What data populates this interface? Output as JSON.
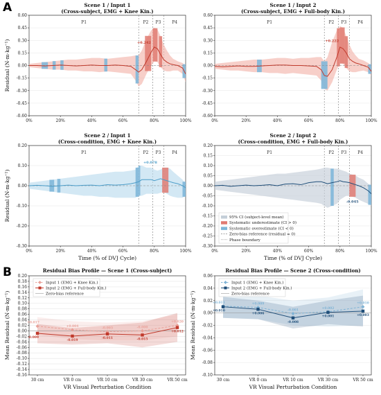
{
  "panel_letters": [
    "A",
    "B"
  ],
  "chart_data": [
    {
      "id": "s1i1",
      "type": "line",
      "title_line1": "Scene 1 / Input 1",
      "title_line2": "(Cross-subject, EMG + Knee Kin.)",
      "xlabel": "",
      "ylabel": "Residual  (N·m·kg⁻¹)",
      "xlim": [
        0,
        100
      ],
      "ylim": [
        -0.6,
        0.6
      ],
      "xticks": [
        0,
        20,
        40,
        60,
        80,
        100
      ],
      "xtick_labels": [
        "0%",
        "20%",
        "40%",
        "60%",
        "80%",
        "100%"
      ],
      "yticks": [
        -0.6,
        -0.45,
        -0.3,
        -0.15,
        0,
        0.15,
        0.3,
        0.45,
        0.6
      ],
      "ytick_labels": [
        "-0.60",
        "-0.45",
        "-0.30",
        "-0.15",
        "0.00",
        "0.15",
        "0.30",
        "0.45",
        "0.60"
      ],
      "phase_boundaries": [
        70,
        79,
        86
      ],
      "phases": [
        {
          "label": "P1",
          "x": 35
        },
        {
          "label": "P2",
          "x": 74.5
        },
        {
          "label": "P3",
          "x": 82.5
        },
        {
          "label": "P4",
          "x": 93
        }
      ],
      "color": "#c0392b",
      "band_color": "#f3b6ac",
      "series_x": [
        0,
        5,
        10,
        15,
        20,
        25,
        30,
        35,
        40,
        45,
        50,
        55,
        60,
        65,
        68,
        70,
        72,
        75,
        78,
        80,
        82,
        84,
        86,
        88,
        90,
        92,
        95,
        98,
        100
      ],
      "mean": [
        0.0,
        0.0,
        -0.005,
        0.0,
        0.005,
        0.0,
        -0.005,
        0.0,
        0.005,
        0.0,
        0.0,
        0.005,
        0.0,
        -0.01,
        -0.05,
        -0.08,
        -0.05,
        0.05,
        0.16,
        0.22,
        0.2,
        0.13,
        0.07,
        0.04,
        0.02,
        0.01,
        0.0,
        -0.03,
        -0.1
      ],
      "upper": [
        0.02,
        0.03,
        0.04,
        0.05,
        0.06,
        0.07,
        0.07,
        0.08,
        0.09,
        0.09,
        0.08,
        0.09,
        0.1,
        0.11,
        0.12,
        0.12,
        0.18,
        0.32,
        0.42,
        0.45,
        0.43,
        0.35,
        0.25,
        0.18,
        0.12,
        0.08,
        0.05,
        0.03,
        0.0
      ],
      "lower": [
        -0.02,
        -0.03,
        -0.04,
        -0.05,
        -0.05,
        -0.06,
        -0.06,
        -0.07,
        -0.07,
        -0.08,
        -0.07,
        -0.08,
        -0.09,
        -0.1,
        -0.18,
        -0.25,
        -0.22,
        -0.1,
        0.0,
        0.05,
        0.04,
        -0.02,
        -0.06,
        -0.07,
        -0.07,
        -0.06,
        -0.06,
        -0.1,
        -0.2
      ],
      "under_bars": [
        [
          74,
          78
        ],
        [
          79,
          82
        ],
        [
          83,
          85
        ]
      ],
      "over_bars": [
        [
          8,
          12
        ],
        [
          15,
          17
        ],
        [
          20,
          22
        ],
        [
          48,
          50
        ],
        [
          68,
          70
        ],
        [
          98,
          100
        ]
      ],
      "annotation": {
        "text": "+0.242",
        "x": 69,
        "y": 0.26
      }
    },
    {
      "id": "s1i2",
      "type": "line",
      "title_line1": "Scene 1 / Input 2",
      "title_line2": "(Cross-subject, EMG + Full-body Kin.)",
      "xlabel": "",
      "ylabel": "",
      "xlim": [
        0,
        100
      ],
      "ylim": [
        -0.6,
        0.6
      ],
      "xticks": [
        0,
        20,
        40,
        60,
        80,
        100
      ],
      "xtick_labels": [
        "0%",
        "20%",
        "40%",
        "60%",
        "80%",
        "100%"
      ],
      "yticks": [
        -0.6,
        -0.45,
        -0.3,
        -0.15,
        0,
        0.15,
        0.3,
        0.45,
        0.6
      ],
      "ytick_labels": [
        "-0.60",
        "-0.45",
        "-0.30",
        "-0.15",
        "0.00",
        "0.15",
        "0.30",
        "0.45",
        "0.60"
      ],
      "phase_boundaries": [
        70,
        79,
        86
      ],
      "phases": [
        {
          "label": "P1",
          "x": 35
        },
        {
          "label": "P2",
          "x": 74.5
        },
        {
          "label": "P3",
          "x": 82.5
        },
        {
          "label": "P4",
          "x": 93
        }
      ],
      "color": "#c0392b",
      "band_color": "#f3b6ac",
      "series_x": [
        0,
        5,
        10,
        15,
        20,
        25,
        30,
        35,
        40,
        45,
        50,
        55,
        60,
        65,
        68,
        70,
        72,
        75,
        78,
        80,
        82,
        84,
        86,
        88,
        90,
        92,
        95,
        98,
        100
      ],
      "mean": [
        -0.01,
        -0.015,
        -0.01,
        -0.005,
        -0.01,
        -0.01,
        -0.005,
        0.0,
        0.005,
        0.005,
        0.0,
        0.0,
        -0.005,
        -0.01,
        -0.05,
        -0.12,
        -0.13,
        -0.05,
        0.1,
        0.22,
        0.2,
        0.15,
        0.08,
        0.05,
        0.03,
        0.02,
        0.0,
        -0.02,
        -0.07
      ],
      "upper": [
        0.02,
        0.03,
        0.04,
        0.05,
        0.06,
        0.07,
        0.07,
        0.08,
        0.09,
        0.09,
        0.08,
        0.09,
        0.09,
        0.1,
        0.1,
        0.05,
        0.1,
        0.28,
        0.42,
        0.47,
        0.45,
        0.35,
        0.25,
        0.17,
        0.12,
        0.08,
        0.06,
        0.03,
        0.0
      ],
      "lower": [
        -0.04,
        -0.05,
        -0.06,
        -0.06,
        -0.07,
        -0.08,
        -0.08,
        -0.09,
        -0.09,
        -0.1,
        -0.09,
        -0.1,
        -0.11,
        -0.12,
        -0.18,
        -0.28,
        -0.3,
        -0.2,
        -0.05,
        0.03,
        0.02,
        -0.03,
        -0.07,
        -0.08,
        -0.08,
        -0.07,
        -0.06,
        -0.08,
        -0.12
      ],
      "under_bars": [
        [
          78,
          80
        ],
        [
          80,
          83
        ],
        [
          83,
          85
        ]
      ],
      "over_bars": [
        [
          27,
          30
        ],
        [
          68,
          72
        ],
        [
          98,
          100
        ]
      ],
      "annotation": {
        "text": "+0.222",
        "x": 70.5,
        "y": 0.28
      }
    },
    {
      "id": "s2i1",
      "type": "line",
      "title_line1": "Scene 2 / Input 1",
      "title_line2": "(Cross-condition, EMG + Knee Kin.)",
      "xlabel": "Time (% of DVJ Cycle)",
      "ylabel": "Residual  (N·m·kg⁻¹)",
      "xlim": [
        0,
        100
      ],
      "ylim": [
        -0.3,
        0.2
      ],
      "xticks": [
        0,
        20,
        40,
        60,
        80,
        100
      ],
      "xtick_labels": [
        "0%",
        "20%",
        "40%",
        "60%",
        "80%",
        "100%"
      ],
      "yticks": [
        -0.3,
        -0.2,
        -0.1,
        0,
        0.1,
        0.2
      ],
      "ytick_labels": [
        "-0.30",
        "-0.20",
        "-0.10",
        "0.00",
        "0.10",
        "0.20"
      ],
      "phase_boundaries": [
        70,
        79,
        86
      ],
      "phases": [
        {
          "label": "P1",
          "x": 35
        },
        {
          "label": "P2",
          "x": 74.5
        },
        {
          "label": "P3",
          "x": 82.5
        },
        {
          "label": "P4",
          "x": 93
        }
      ],
      "color": "#4a9cc8",
      "band_color": "#bcdcee",
      "series_x": [
        0,
        5,
        10,
        15,
        20,
        25,
        30,
        35,
        40,
        45,
        50,
        55,
        60,
        65,
        68,
        70,
        72,
        75,
        78,
        80,
        82,
        84,
        86,
        88,
        90,
        92,
        95,
        98,
        100
      ],
      "mean": [
        0.0,
        0.002,
        0.0,
        -0.003,
        0.0,
        0.003,
        0.0,
        0.002,
        0.003,
        0.0,
        0.005,
        0.003,
        0.005,
        0.01,
        0.015,
        0.02,
        0.03,
        0.03,
        0.03,
        0.025,
        0.03,
        0.035,
        0.03,
        0.025,
        0.02,
        0.015,
        0.01,
        0.0,
        -0.01
      ],
      "upper": [
        0.015,
        0.02,
        0.025,
        0.03,
        0.035,
        0.04,
        0.045,
        0.05,
        0.055,
        0.06,
        0.065,
        0.07,
        0.07,
        0.075,
        0.08,
        0.1,
        0.1,
        0.09,
        0.09,
        0.08,
        0.075,
        0.08,
        0.09,
        0.09,
        0.085,
        0.07,
        0.05,
        0.03,
        0.01
      ],
      "lower": [
        -0.015,
        -0.02,
        -0.025,
        -0.03,
        -0.035,
        -0.04,
        -0.045,
        -0.05,
        -0.05,
        -0.055,
        -0.055,
        -0.06,
        -0.06,
        -0.06,
        -0.06,
        -0.05,
        -0.05,
        -0.04,
        -0.04,
        -0.04,
        -0.04,
        -0.035,
        -0.03,
        -0.04,
        -0.05,
        -0.055,
        -0.06,
        -0.06,
        -0.05
      ],
      "under_bars": [
        [
          85,
          89
        ]
      ],
      "over_bars": [
        [
          13,
          16
        ],
        [
          18,
          20
        ],
        [
          68,
          70
        ],
        [
          70,
          71
        ],
        [
          98,
          100
        ]
      ],
      "annotation": {
        "text": "+0.078",
        "x": 73,
        "y": 0.11
      }
    },
    {
      "id": "s2i2",
      "type": "line",
      "title_line1": "Scene 2 / Input 2",
      "title_line2": "(Cross-condition, EMG + Full-body Kin.)",
      "xlabel": "Time (% of DVJ Cycle)",
      "ylabel": "",
      "xlim": [
        0,
        100
      ],
      "ylim": [
        -0.3,
        0.2
      ],
      "xticks": [
        0,
        20,
        40,
        60,
        80,
        100
      ],
      "xtick_labels": [
        "0%",
        "20%",
        "40%",
        "60%",
        "80%",
        "100%"
      ],
      "yticks": [
        -0.3,
        -0.25,
        -0.2,
        -0.15,
        -0.1,
        -0.05,
        0,
        0.05,
        0.1,
        0.15,
        0.2
      ],
      "ytick_labels": [
        "-0.30",
        "-0.25",
        "-0.20",
        "-0.15",
        "-0.10",
        "-0.05",
        "0.00",
        "0.05",
        "0.10",
        "0.15",
        "0.20"
      ],
      "phase_boundaries": [
        70,
        79,
        86
      ],
      "phases": [
        {
          "label": "P1",
          "x": 35
        },
        {
          "label": "P2",
          "x": 74.5
        },
        {
          "label": "P3",
          "x": 82.5
        },
        {
          "label": "P4",
          "x": 93
        }
      ],
      "color": "#1f4e79",
      "band_color": "#c4ced8",
      "series_x": [
        0,
        5,
        10,
        15,
        20,
        25,
        30,
        35,
        40,
        45,
        50,
        55,
        60,
        65,
        68,
        70,
        72,
        75,
        78,
        80,
        82,
        84,
        86,
        88,
        90,
        92,
        95,
        98,
        100
      ],
      "mean": [
        0.0,
        0.002,
        -0.003,
        0.0,
        0.003,
        0.0,
        0.002,
        0.005,
        0.0,
        0.008,
        0.01,
        0.005,
        0.015,
        0.02,
        0.02,
        0.015,
        0.01,
        0.015,
        0.02,
        0.025,
        0.02,
        0.018,
        0.015,
        0.01,
        0.005,
        0.0,
        -0.01,
        -0.025,
        -0.04
      ],
      "upper": [
        0.02,
        0.025,
        0.03,
        0.035,
        0.04,
        0.045,
        0.05,
        0.055,
        0.06,
        0.06,
        0.065,
        0.07,
        0.075,
        0.08,
        0.085,
        0.09,
        0.09,
        0.085,
        0.085,
        0.08,
        0.075,
        0.07,
        0.06,
        0.055,
        0.05,
        0.04,
        0.03,
        0.01,
        0.0
      ],
      "lower": [
        -0.02,
        -0.025,
        -0.03,
        -0.035,
        -0.04,
        -0.045,
        -0.05,
        -0.055,
        -0.06,
        -0.065,
        -0.07,
        -0.075,
        -0.08,
        -0.085,
        -0.09,
        -0.1,
        -0.11,
        -0.1,
        -0.09,
        -0.07,
        -0.06,
        -0.05,
        -0.05,
        -0.055,
        -0.06,
        -0.07,
        -0.08,
        -0.09,
        -0.1
      ],
      "under_bars": [
        [
          86,
          90
        ]
      ],
      "over_bars": [
        [
          74,
          76
        ],
        [
          98,
          100
        ]
      ],
      "annotation": {
        "text": "-0.045",
        "x": 84,
        "y": -0.085
      },
      "legend": [
        "95% CI (subject-level mean)",
        "Systematic underestimate (CI > 0)",
        "Systematic overestimate (CI < 0)",
        "Zero-bias reference (residual = 0)",
        "Phase boundary"
      ]
    },
    {
      "id": "b1",
      "type": "line",
      "title": "Residual Bias Profile — Scene 1 (Cross-subject)",
      "xlabel": "VR Visual Perturbation Condition",
      "ylabel": "Mean Residual  (N·m·kg⁻¹)",
      "categories": [
        "30 cm",
        "VR 0 cm",
        "VR 10 cm",
        "VR 30 cm",
        "VR 50 cm"
      ],
      "ylim": [
        -0.16,
        0.2
      ],
      "yticks": [
        -0.16,
        -0.14,
        -0.12,
        -0.1,
        -0.08,
        -0.06,
        -0.04,
        -0.02,
        0,
        0.02,
        0.04,
        0.06,
        0.08,
        0.1,
        0.12,
        0.14,
        0.16,
        0.18,
        0.2
      ],
      "ytick_labels": [
        "-0.16",
        "-0.14",
        "-0.12",
        "-0.10",
        "-0.08",
        "-0.06",
        "-0.04",
        "-0.02",
        "0.00",
        "0.02",
        "0.04",
        "0.06",
        "0.08",
        "0.10",
        "0.12",
        "0.14",
        "0.16",
        "0.18",
        "0.20"
      ],
      "series": [
        {
          "name": "Input 1  (EMG + Knee Kin.)",
          "values": [
            0.017,
            0.004,
            -0.003,
            0.0,
            0.02
          ],
          "labels": [
            "+0.017",
            "+0.004",
            "-0.003",
            "-0.000",
            "+0.020"
          ],
          "color": "#e9a199",
          "dashed": true,
          "marker": "diamond",
          "upper": [
            0.05,
            0.035,
            0.03,
            0.035,
            0.06
          ],
          "lower": [
            -0.015,
            -0.03,
            -0.035,
            -0.035,
            -0.02
          ]
        },
        {
          "name": "Input 2  (EMG + Full-body Kin.)",
          "values": [
            -0.009,
            -0.019,
            -0.011,
            -0.015,
            0.012
          ],
          "labels": [
            "-0.009",
            "-0.019",
            "-0.011",
            "-0.015",
            "+0.012"
          ],
          "color": "#c0392b",
          "dashed": false,
          "marker": "square",
          "upper": [
            0.025,
            0.01,
            0.02,
            0.03,
            0.065
          ],
          "lower": [
            -0.045,
            -0.05,
            -0.045,
            -0.06,
            -0.04
          ]
        }
      ],
      "zero_label": "Zero-bias reference"
    },
    {
      "id": "b2",
      "type": "line",
      "title": "Residual Bias Profile — Scene 2 (Cross-condition)",
      "xlabel": "VR Visual Perturbation Condition",
      "ylabel": "Mean Residual  (N·m·kg⁻¹)",
      "categories": [
        "30 cm",
        "VR 0 cm",
        "VR 10 cm",
        "VR 30 cm",
        "VR 50 cm"
      ],
      "ylim": [
        -0.1,
        0.06
      ],
      "yticks": [
        -0.1,
        -0.08,
        -0.06,
        -0.04,
        -0.02,
        0,
        0.02,
        0.04,
        0.06
      ],
      "ytick_labels": [
        "-0.10",
        "-0.08",
        "-0.06",
        "-0.04",
        "-0.02",
        "0.00",
        "0.02",
        "0.04",
        "0.06"
      ],
      "series": [
        {
          "name": "Input 1  (EMG + Knee Kin.)",
          "values": [
            0.011,
            0.009,
            -0.001,
            0.002,
            0.01
          ],
          "labels": [
            "+0.011",
            "+0.009",
            "-0.001",
            "+0.002",
            "+0.010"
          ],
          "color": "#7fb3d5",
          "dashed": true,
          "marker": "diamond",
          "upper": [
            0.028,
            0.028,
            0.02,
            0.025,
            0.038
          ],
          "lower": [
            -0.008,
            -0.01,
            -0.02,
            -0.022,
            -0.02
          ]
        },
        {
          "name": "Input 2  (EMG + Full-body Kin.)",
          "values": [
            0.01,
            0.006,
            -0.008,
            0.001,
            0.003
          ],
          "labels": [
            "+0.010",
            "+0.006",
            "-0.008",
            "+0.001",
            "+0.003"
          ],
          "color": "#1f4e79",
          "dashed": false,
          "marker": "square",
          "upper": [
            0.026,
            0.02,
            0.01,
            0.02,
            0.028
          ],
          "lower": [
            -0.008,
            -0.01,
            -0.025,
            -0.018,
            -0.022
          ]
        }
      ],
      "zero_label": "Zero-bias reference"
    }
  ]
}
